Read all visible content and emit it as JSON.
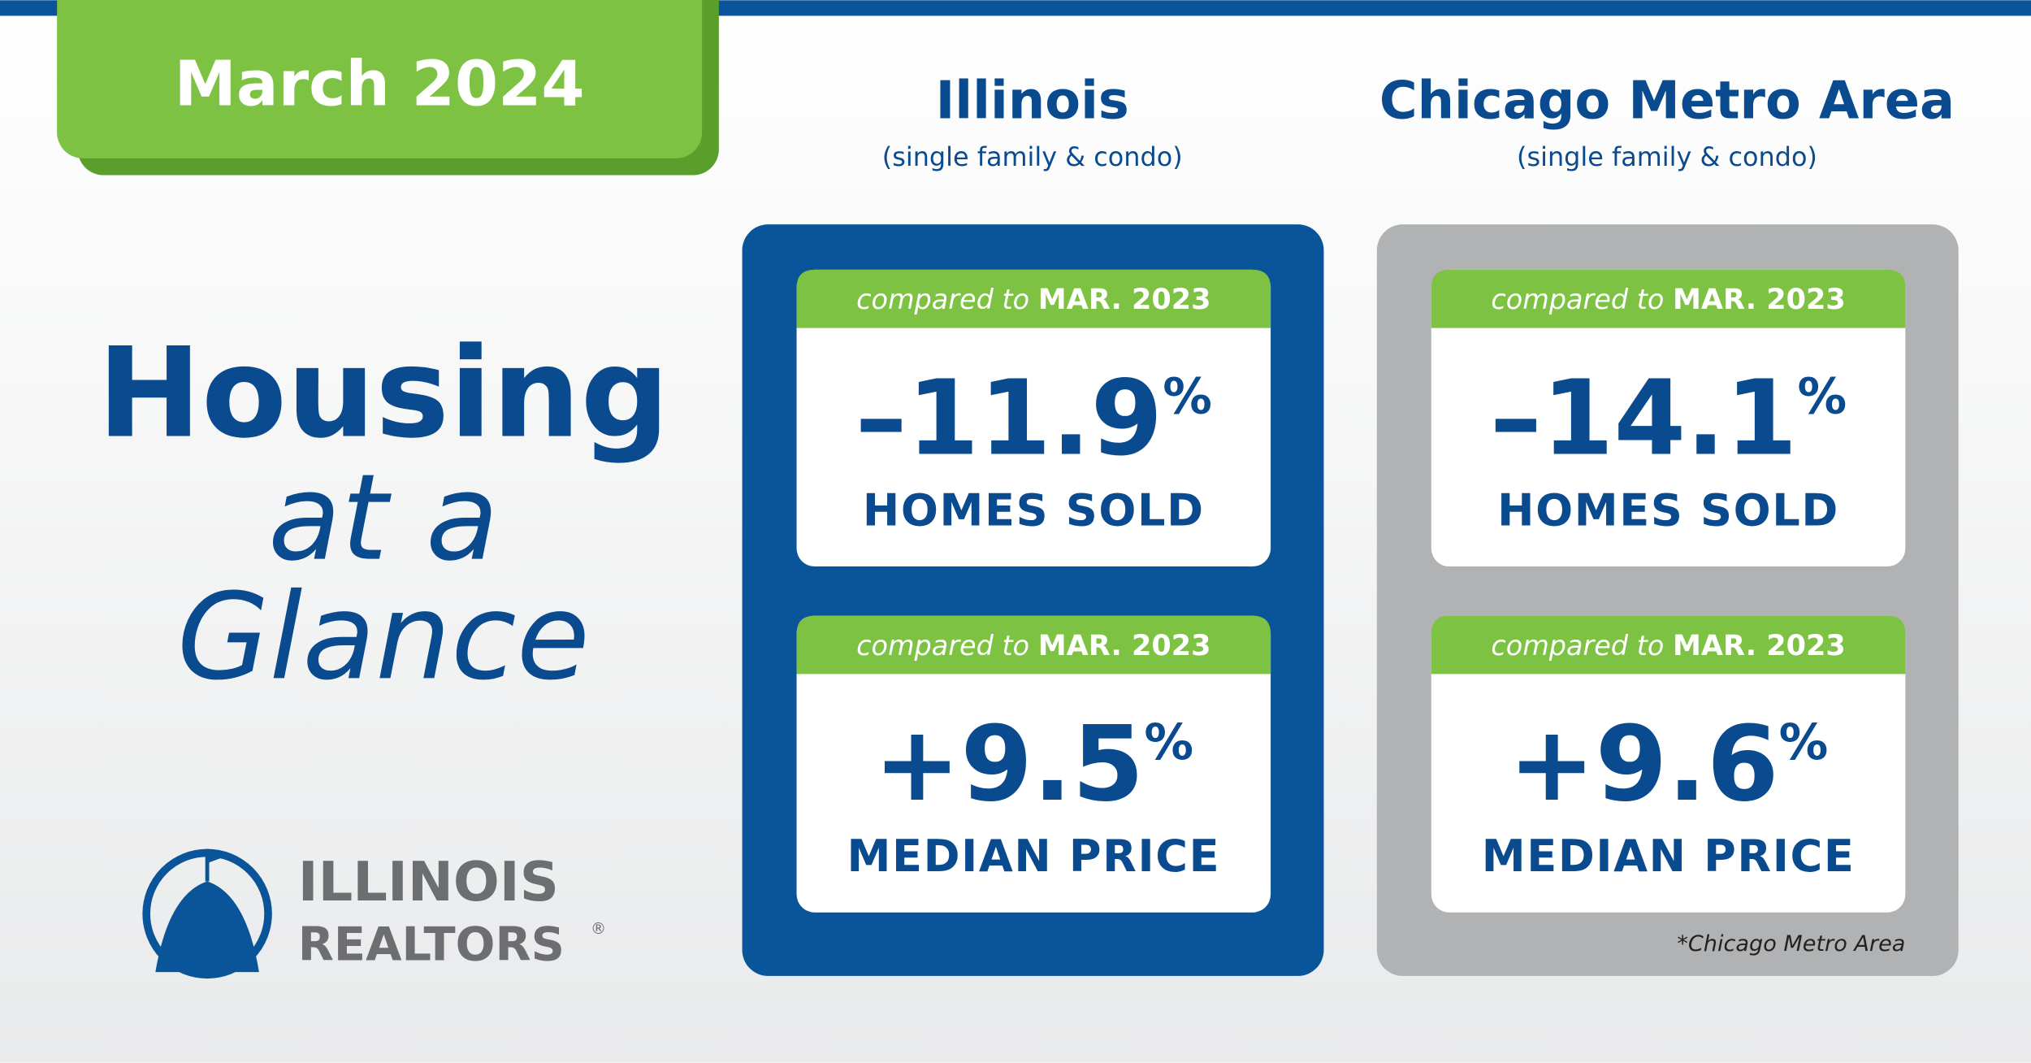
{
  "badge": "March 2024",
  "headline": {
    "line1": "Housing",
    "line2": "at a",
    "line3": "Glance"
  },
  "logo": {
    "line1": "ILLINOIS",
    "line2": "REALTORS",
    "mark": "®"
  },
  "panels": [
    {
      "title": "Illinois",
      "subtitle": "(single family & condo)",
      "cards": [
        {
          "compared_prefix": "compared to",
          "compared_period": "MAR. 2023",
          "value": "–11.9",
          "unit": "%",
          "label": "HOMES SOLD"
        },
        {
          "compared_prefix": "compared to",
          "compared_period": "MAR. 2023",
          "value": "+9.5",
          "unit": "%",
          "label": "MEDIAN PRICE"
        }
      ]
    },
    {
      "title": "Chicago Metro Area",
      "subtitle": "(single family & condo)",
      "cards": [
        {
          "compared_prefix": "compared to",
          "compared_period": "MAR. 2023",
          "value": "–14.1",
          "unit": "%",
          "label": "HOMES SOLD"
        },
        {
          "compared_prefix": "compared to",
          "compared_period": "MAR. 2023",
          "value": "+9.6",
          "unit": "%",
          "label": "MEDIAN PRICE"
        }
      ],
      "footnote": "*Chicago Metro Area"
    }
  ]
}
